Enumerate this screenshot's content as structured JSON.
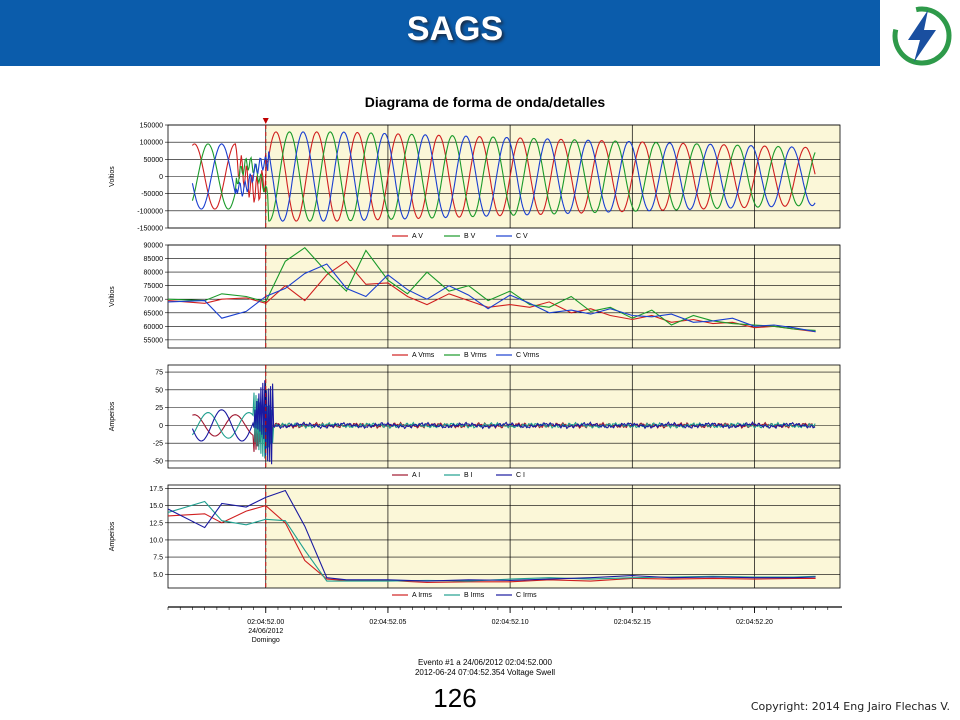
{
  "slide": {
    "title": "SAGS",
    "page_number": "126",
    "copyright": "Copyright: 2014 Eng Jairo Flechas V.",
    "header_color": "#0b5cab",
    "logo_icon": "lightning-bolt-icon",
    "logo_color": "#2e9a4a"
  },
  "chart_data": {
    "title": "Diagrama de forma de onda/detalles",
    "type": "line",
    "plot_background": "#fbf7d8",
    "event_line_color": "#c00000",
    "x_axis": {
      "tick_labels": [
        "02:04:52.00",
        "02:04:52.05",
        "02:04:52.10",
        "02:04:52.15",
        "02:04:52.20"
      ],
      "tick_values": [
        0.0,
        0.05,
        0.1,
        0.15,
        0.2
      ],
      "first_tick_extra": [
        "24/06/2012",
        "Domingo"
      ],
      "range": [
        -0.04,
        0.235
      ]
    },
    "event_marker_time": 0.0,
    "event_text": [
      "Evento #1 a 24/06/2012 02:04:52.000",
      "2012-06-24 07:04:52.354 Voltage Swell"
    ],
    "panels": [
      {
        "id": "voltage_waveform",
        "ylabel": "Voltios",
        "ylim": [
          -150000,
          150000
        ],
        "y_ticks": [
          150000,
          100000,
          50000,
          0,
          -50000,
          -100000,
          -150000
        ],
        "y_tick_labels": [
          "150000",
          "100000",
          "50000",
          "0",
          "-50000",
          "-100000",
          "-150000"
        ],
        "series": [
          {
            "name": "A V",
            "color": "#d02020",
            "amplitude_pre": 95000,
            "amplitude_post": 130000,
            "amplitude_end": 85000,
            "phase_deg": 0,
            "frequency_hz": 60
          },
          {
            "name": "B V",
            "color": "#1a9a2a",
            "amplitude_pre": 95000,
            "amplitude_post": 130000,
            "amplitude_end": 85000,
            "phase_deg": -120,
            "frequency_hz": 60
          },
          {
            "name": "C V",
            "color": "#1a3fd0",
            "amplitude_pre": 95000,
            "amplitude_post": 130000,
            "amplitude_end": 85000,
            "phase_deg": 120,
            "frequency_hz": 60
          }
        ]
      },
      {
        "id": "voltage_rms",
        "ylabel": "Voltios",
        "ylim": [
          52000,
          90000
        ],
        "y_ticks": [
          90000,
          85000,
          80000,
          75000,
          70000,
          65000,
          60000,
          55000
        ],
        "y_tick_labels": [
          "90000",
          "85000",
          "80000",
          "75000",
          "70000",
          "65000",
          "60000",
          "55000"
        ],
        "x": [
          -0.04,
          -0.025,
          -0.018,
          -0.008,
          0.0,
          0.008,
          0.016,
          0.025,
          0.033,
          0.041,
          0.05,
          0.058,
          0.066,
          0.075,
          0.083,
          0.091,
          0.1,
          0.108,
          0.116,
          0.125,
          0.133,
          0.141,
          0.15,
          0.158,
          0.166,
          0.175,
          0.183,
          0.191,
          0.2,
          0.208,
          0.216,
          0.225
        ],
        "series": [
          {
            "name": "A Vrms",
            "color": "#d02020",
            "values": [
              69500,
              68500,
              70000,
              70500,
              68500,
              75000,
              69500,
              79000,
              84000,
              75500,
              76000,
              71000,
              68000,
              72000,
              69500,
              67000,
              68000,
              67000,
              69000,
              65000,
              66500,
              64000,
              62500,
              64000,
              61500,
              62500,
              61000,
              61500,
              59500,
              60000,
              59000,
              58000
            ]
          },
          {
            "name": "B Vrms",
            "color": "#1a9a2a",
            "values": [
              70000,
              69500,
              72000,
              71000,
              69000,
              84000,
              89000,
              80000,
              73000,
              88000,
              77000,
              72000,
              80000,
              73000,
              75000,
              69500,
              73000,
              68000,
              67000,
              71000,
              65500,
              67000,
              63000,
              66000,
              60500,
              64000,
              62000,
              61000,
              60500,
              60000,
              59000,
              58500
            ]
          },
          {
            "name": "C Vrms",
            "color": "#1a3fd0",
            "values": [
              69000,
              69500,
              63000,
              65500,
              71000,
              74000,
              79500,
              83000,
              74000,
              71000,
              79000,
              73500,
              70000,
              75000,
              71500,
              66500,
              71500,
              68500,
              65000,
              66000,
              64500,
              66500,
              64000,
              63500,
              64500,
              61500,
              62000,
              63000,
              60000,
              60500,
              59500,
              58000
            ]
          }
        ]
      },
      {
        "id": "current_waveform",
        "ylabel": "Amperios",
        "ylim": [
          -60,
          85
        ],
        "y_ticks": [
          75,
          50,
          25,
          0,
          -25,
          -50
        ],
        "y_tick_labels": [
          "75",
          "50",
          "25",
          "0",
          "-25",
          "-50"
        ],
        "series": [
          {
            "name": "A I",
            "color": "#a01830",
            "amplitude_pre": 15,
            "amplitude_post": 1.5,
            "phase_deg": 0,
            "frequency_hz": 60
          },
          {
            "name": "B I",
            "color": "#20a090",
            "amplitude_pre": 18,
            "amplitude_post": 1.5,
            "phase_deg": -120,
            "frequency_hz": 60
          },
          {
            "name": "C I",
            "color": "#1a1aa0",
            "amplitude_pre": 22,
            "amplitude_post": 2,
            "phase_deg": 120,
            "frequency_hz": 60
          }
        ]
      },
      {
        "id": "current_rms",
        "ylabel": "Amperios",
        "ylim": [
          3,
          18
        ],
        "y_ticks": [
          17.5,
          15.0,
          12.5,
          10.0,
          7.5,
          5.0
        ],
        "y_tick_labels": [
          "17.5",
          "15.0",
          "12.5",
          "10.0",
          "7.5",
          "5.0"
        ],
        "x": [
          -0.04,
          -0.025,
          -0.018,
          -0.008,
          0.0,
          0.008,
          0.016,
          0.025,
          0.033,
          0.05,
          0.066,
          0.083,
          0.1,
          0.116,
          0.133,
          0.15,
          0.166,
          0.183,
          0.2,
          0.216,
          0.225
        ],
        "series": [
          {
            "name": "A Irms",
            "color": "#d02020",
            "values": [
              13.5,
              13.8,
              12.5,
              14.2,
              15.0,
              12.5,
              7.0,
              4.3,
              4.1,
              4.1,
              3.8,
              3.9,
              3.9,
              4.2,
              4.0,
              4.4,
              4.3,
              4.4,
              4.3,
              4.4,
              4.4
            ]
          },
          {
            "name": "B Irms",
            "color": "#20a090",
            "values": [
              14.0,
              15.6,
              12.8,
              12.2,
              13.0,
              12.8,
              8.5,
              4.0,
              4.0,
              4.0,
              4.1,
              4.0,
              4.3,
              4.5,
              4.3,
              4.5,
              4.6,
              4.7,
              4.6,
              4.6,
              4.7
            ]
          },
          {
            "name": "C Irms",
            "color": "#1a1aa0",
            "values": [
              14.5,
              11.8,
              15.3,
              14.8,
              16.2,
              17.2,
              12.0,
              4.5,
              4.2,
              4.2,
              4.0,
              4.2,
              4.1,
              4.3,
              4.5,
              4.8,
              4.5,
              4.6,
              4.5,
              4.5,
              4.6
            ]
          }
        ]
      }
    ]
  }
}
